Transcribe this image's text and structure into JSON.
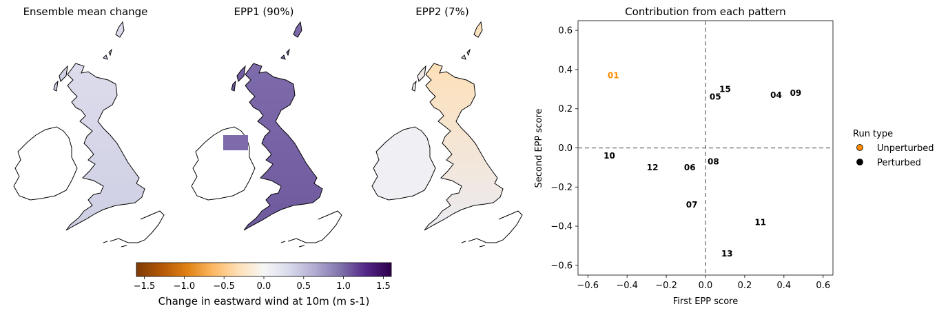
{
  "maps": [
    {
      "title": "Ensemble mean change",
      "tint": "#dcdcec",
      "tint2": "#cfcfe4"
    },
    {
      "title": "EPP1 (90%)",
      "tint": "#7e6bab",
      "tint2": "#6e5a9e"
    },
    {
      "title": "EPP2 (7%)",
      "tint": "#ebebf2",
      "tint2": "#fde0b8"
    }
  ],
  "colorbar": {
    "label": "Change in eastward wind at 10m (m s-1)",
    "ticks": [
      "−1.5",
      "−1.0",
      "−0.5",
      "0.0",
      "0.5",
      "1.0",
      "1.5"
    ],
    "tick_values": [
      -1.5,
      -1.0,
      -0.5,
      0.0,
      0.5,
      1.0,
      1.5
    ],
    "range": [
      -1.6,
      1.6
    ],
    "colors": [
      "#7f3b08",
      "#b35806",
      "#e08214",
      "#fdb863",
      "#fee0b6",
      "#f7f7f7",
      "#d8daeb",
      "#b2abd2",
      "#8073ac",
      "#542788",
      "#2d004b"
    ]
  },
  "chart_data": {
    "type": "scatter",
    "title": "Contribution from each pattern",
    "xlabel": "First EPP score",
    "ylabel": "Second EPP score",
    "xlim": [
      -0.65,
      0.65
    ],
    "ylim": [
      -0.65,
      0.65
    ],
    "xticks": [
      -0.6,
      -0.4,
      -0.2,
      0.0,
      0.2,
      0.4,
      0.6
    ],
    "xtick_labels": [
      "−0.6",
      "−0.4",
      "−0.2",
      "0.0",
      "0.2",
      "0.4",
      "0.6"
    ],
    "yticks": [
      -0.6,
      -0.4,
      -0.2,
      0.0,
      0.2,
      0.4,
      0.6
    ],
    "ytick_labels": [
      "−0.6",
      "−0.4",
      "−0.2",
      "0.0",
      "0.2",
      "0.4",
      "0.6"
    ],
    "reference_lines": {
      "x": 0.0,
      "y": 0.0,
      "style": "dashed",
      "color": "#808080"
    },
    "series": [
      {
        "name": "Unperturbed",
        "color": "#ff8c00",
        "points": [
          {
            "label": "01",
            "x": -0.47,
            "y": 0.37
          }
        ]
      },
      {
        "name": "Perturbed",
        "color": "#000000",
        "points": [
          {
            "label": "04",
            "x": 0.36,
            "y": 0.27
          },
          {
            "label": "05",
            "x": 0.05,
            "y": 0.26
          },
          {
            "label": "06",
            "x": -0.08,
            "y": -0.1
          },
          {
            "label": "07",
            "x": -0.07,
            "y": -0.29
          },
          {
            "label": "08",
            "x": 0.04,
            "y": -0.07
          },
          {
            "label": "09",
            "x": 0.46,
            "y": 0.28
          },
          {
            "label": "10",
            "x": -0.49,
            "y": -0.04
          },
          {
            "label": "11",
            "x": 0.28,
            "y": -0.38
          },
          {
            "label": "12",
            "x": -0.27,
            "y": -0.1
          },
          {
            "label": "13",
            "x": 0.11,
            "y": -0.54
          },
          {
            "label": "15",
            "x": 0.1,
            "y": 0.3
          }
        ]
      }
    ],
    "legend": {
      "title": "Run type",
      "placement": "right-outside",
      "entries": [
        {
          "label": "Unperturbed",
          "color": "#ff8c00"
        },
        {
          "label": "Perturbed",
          "color": "#000000"
        }
      ]
    }
  }
}
